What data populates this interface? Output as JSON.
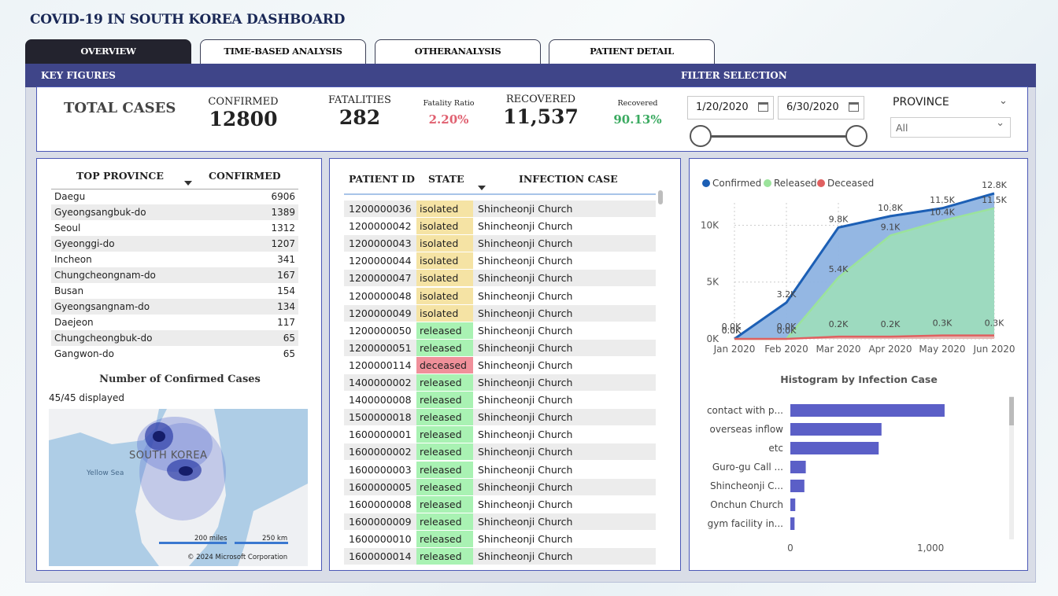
{
  "dashboard_title": "COVID-19 IN SOUTH KOREA DASHBOARD",
  "tabs": [
    {
      "label": "OVERVIEW"
    },
    {
      "label": "TIME-BASED ANALYSIS"
    },
    {
      "label": "OTHERANALYSIS"
    },
    {
      "label": "PATIENT DETAIL"
    }
  ],
  "sections": {
    "key_figures": "KEY FIGURES",
    "filter_selection": "FILTER SELECTION"
  },
  "kpis": {
    "total_cases": "TOTAL CASES",
    "confirmed_label": "CONFIRMED",
    "confirmed_value": "12800",
    "fatalities_label": "FATALITIES",
    "fatalities_value": "282",
    "fatality_ratio_label": "Fatality Ratio",
    "fatality_ratio_value": "2.20%",
    "recovered_label": "RECOVERED",
    "recovered_value": "11,537",
    "recovered_ratio_label": "Recovered",
    "recovered_ratio_value": "90.13%"
  },
  "filters": {
    "start_date": "1/20/2020",
    "end_date": "6/30/2020",
    "province_label": "PROVINCE",
    "province_value": "All"
  },
  "colors": {
    "accent": "#3f4589",
    "confirmed": "#1c5fb5",
    "released": "#9be39b",
    "deceased": "#e06060",
    "fatality": "#e06070",
    "recovered": "#3aaa60",
    "bar": "#5b5fc7"
  },
  "province_table": {
    "col1": "TOP PROVINCE",
    "col2": "CONFIRMED",
    "rows": [
      {
        "name": "Daegu",
        "value": "6906"
      },
      {
        "name": "Gyeongsangbuk-do",
        "value": "1389"
      },
      {
        "name": "Seoul",
        "value": "1312"
      },
      {
        "name": "Gyeonggi-do",
        "value": "1207"
      },
      {
        "name": "Incheon",
        "value": "341"
      },
      {
        "name": "Chungcheongnam-do",
        "value": "167"
      },
      {
        "name": "Busan",
        "value": "154"
      },
      {
        "name": "Gyeongsangnam-do",
        "value": "134"
      },
      {
        "name": "Daejeon",
        "value": "117"
      },
      {
        "name": "Chungcheongbuk-do",
        "value": "65"
      },
      {
        "name": "Gangwon-do",
        "value": "65"
      }
    ]
  },
  "map": {
    "title": "Number of Confirmed Cases",
    "displayed": "45/45 displayed",
    "country_label": "SOUTH KOREA",
    "sea_label": "Yellow Sea",
    "scale_miles": "200 miles",
    "scale_km": "250 km",
    "copyright": "© 2024 Microsoft Corporation"
  },
  "patient_table": {
    "col1": "PATIENT ID",
    "col2": "STATE",
    "col3": "INFECTION CASE",
    "rows": [
      {
        "id": "1200000036",
        "state": "isolated",
        "case": "Shincheonji Church"
      },
      {
        "id": "1200000042",
        "state": "isolated",
        "case": "Shincheonji Church"
      },
      {
        "id": "1200000043",
        "state": "isolated",
        "case": "Shincheonji Church"
      },
      {
        "id": "1200000044",
        "state": "isolated",
        "case": "Shincheonji Church"
      },
      {
        "id": "1200000047",
        "state": "isolated",
        "case": "Shincheonji Church"
      },
      {
        "id": "1200000048",
        "state": "isolated",
        "case": "Shincheonji Church"
      },
      {
        "id": "1200000049",
        "state": "isolated",
        "case": "Shincheonji Church"
      },
      {
        "id": "1200000050",
        "state": "released",
        "case": "Shincheonji Church"
      },
      {
        "id": "1200000051",
        "state": "released",
        "case": "Shincheonji Church"
      },
      {
        "id": "1200000114",
        "state": "deceased",
        "case": "Shincheonji Church"
      },
      {
        "id": "1400000002",
        "state": "released",
        "case": "Shincheonji Church"
      },
      {
        "id": "1400000008",
        "state": "released",
        "case": "Shincheonji Church"
      },
      {
        "id": "1500000018",
        "state": "released",
        "case": "Shincheonji Church"
      },
      {
        "id": "1600000001",
        "state": "released",
        "case": "Shincheonji Church"
      },
      {
        "id": "1600000002",
        "state": "released",
        "case": "Shincheonji Church"
      },
      {
        "id": "1600000003",
        "state": "released",
        "case": "Shincheonji Church"
      },
      {
        "id": "1600000005",
        "state": "released",
        "case": "Shincheonji Church"
      },
      {
        "id": "1600000008",
        "state": "released",
        "case": "Shincheonji Church"
      },
      {
        "id": "1600000009",
        "state": "released",
        "case": "Shincheonji Church"
      },
      {
        "id": "1600000010",
        "state": "released",
        "case": "Shincheonji Church"
      },
      {
        "id": "1600000014",
        "state": "released",
        "case": "Shincheonji Church"
      }
    ]
  },
  "chart_data": [
    {
      "type": "area",
      "legend_position": "top-left",
      "categories": [
        "Jan 2020",
        "Feb 2020",
        "Mar 2020",
        "Apr 2020",
        "May 2020",
        "Jun 2020"
      ],
      "ylim": [
        0,
        12800
      ],
      "yticks": [
        "0K",
        "5K",
        "10K"
      ],
      "ytick_values": [
        0,
        5000,
        10000
      ],
      "series": [
        {
          "name": "Confirmed",
          "values": [
            0,
            3200,
            9800,
            10800,
            11500,
            12800
          ],
          "labels": [
            "0.0K",
            "3.2K",
            "9.8K",
            "10.8K",
            "11.5K",
            "12.8K"
          ]
        },
        {
          "name": "Released",
          "values": [
            0,
            0,
            5400,
            9100,
            10400,
            11500
          ],
          "labels": [
            "0.0K",
            "0.0K",
            "5.4K",
            "9.1K",
            "10.4K",
            "11.5K"
          ]
        },
        {
          "name": "Deceased",
          "values": [
            0,
            0,
            200,
            200,
            300,
            300
          ],
          "labels": [
            "0.0K",
            "0.0K",
            "0.2K",
            "0.2K",
            "0.3K",
            "0.3K"
          ]
        }
      ]
    },
    {
      "type": "bar",
      "orientation": "horizontal",
      "title": "Histogram by Infection Case",
      "categories": [
        "contact with p...",
        "overseas inflow",
        "etc",
        "Guro-gu Call ...",
        "Shincheonji C...",
        "Onchun Church",
        "gym facility in..."
      ],
      "values": [
        1100,
        650,
        630,
        110,
        100,
        35,
        30
      ],
      "xlim": [
        0,
        1600
      ],
      "xticks": [
        "0",
        "1,000"
      ],
      "xtick_values": [
        0,
        1000
      ]
    }
  ]
}
